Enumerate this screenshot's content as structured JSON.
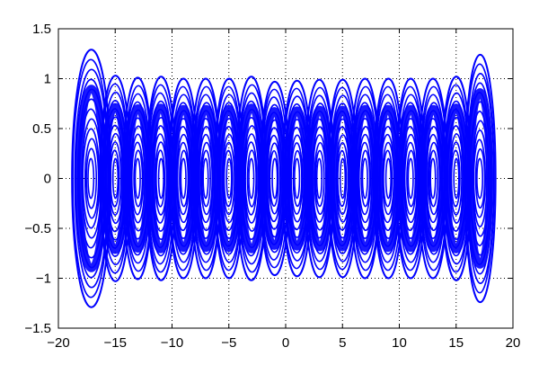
{
  "chart_data": {
    "type": "line",
    "title": "",
    "xlabel": "",
    "ylabel": "",
    "xlim": [
      -20,
      20
    ],
    "ylim": [
      -1.5,
      1.5
    ],
    "xticks": [
      -20,
      -15,
      -10,
      -5,
      0,
      5,
      10,
      15,
      20
    ],
    "yticks": [
      -1.5,
      -1,
      -0.5,
      0,
      0.5,
      1,
      1.5
    ],
    "xtick_labels": [
      "−20",
      "−15",
      "−10",
      "−5",
      "0",
      "5",
      "10",
      "15",
      "20"
    ],
    "ytick_labels": [
      "−1.5",
      "−1",
      "−0.5",
      "0",
      "0.5",
      "1",
      "1.5"
    ],
    "grid": true,
    "grid_style": "dotted",
    "line_color": "#0000ff",
    "series": [
      {
        "shape": "nested loops (phase-portrait attractor)",
        "loops": [
          {
            "cx": -17.1,
            "rx_max": 1.7,
            "ry_max": 1.29,
            "rx_min": 0.25,
            "ry_min": 0.2,
            "rings": 12
          },
          {
            "cx": -15.0,
            "rx_max": 1.35,
            "ry_max": 1.03,
            "rx_min": 0.22,
            "ry_min": 0.2,
            "rings": 11
          },
          {
            "cx": -13.0,
            "rx_max": 1.3,
            "ry_max": 1.01,
            "rx_min": 0.22,
            "ry_min": 0.2,
            "rings": 11
          },
          {
            "cx": -11.0,
            "rx_max": 1.3,
            "ry_max": 1.02,
            "rx_min": 0.22,
            "ry_min": 0.2,
            "rings": 11
          },
          {
            "cx": -9.0,
            "rx_max": 1.3,
            "ry_max": 1.0,
            "rx_min": 0.22,
            "ry_min": 0.2,
            "rings": 11
          },
          {
            "cx": -7.0,
            "rx_max": 1.3,
            "ry_max": 1.0,
            "rx_min": 0.22,
            "ry_min": 0.2,
            "rings": 11
          },
          {
            "cx": -5.0,
            "rx_max": 1.3,
            "ry_max": 1.0,
            "rx_min": 0.22,
            "ry_min": 0.2,
            "rings": 11
          },
          {
            "cx": -3.0,
            "rx_max": 1.35,
            "ry_max": 1.02,
            "rx_min": 0.22,
            "ry_min": 0.2,
            "rings": 11
          },
          {
            "cx": -1.0,
            "rx_max": 1.3,
            "ry_max": 0.97,
            "rx_min": 0.22,
            "ry_min": 0.2,
            "rings": 11
          },
          {
            "cx": 1.0,
            "rx_max": 1.3,
            "ry_max": 0.98,
            "rx_min": 0.22,
            "ry_min": 0.2,
            "rings": 11
          },
          {
            "cx": 3.0,
            "rx_max": 1.3,
            "ry_max": 0.99,
            "rx_min": 0.22,
            "ry_min": 0.2,
            "rings": 11
          },
          {
            "cx": 5.0,
            "rx_max": 1.3,
            "ry_max": 0.99,
            "rx_min": 0.22,
            "ry_min": 0.2,
            "rings": 11
          },
          {
            "cx": 7.0,
            "rx_max": 1.3,
            "ry_max": 1.0,
            "rx_min": 0.22,
            "ry_min": 0.2,
            "rings": 11
          },
          {
            "cx": 9.0,
            "rx_max": 1.3,
            "ry_max": 1.0,
            "rx_min": 0.22,
            "ry_min": 0.2,
            "rings": 11
          },
          {
            "cx": 11.0,
            "rx_max": 1.3,
            "ry_max": 1.0,
            "rx_min": 0.22,
            "ry_min": 0.2,
            "rings": 11
          },
          {
            "cx": 13.0,
            "rx_max": 1.3,
            "ry_max": 1.0,
            "rx_min": 0.22,
            "ry_min": 0.2,
            "rings": 11
          },
          {
            "cx": 15.0,
            "rx_max": 1.3,
            "ry_max": 1.02,
            "rx_min": 0.22,
            "ry_min": 0.2,
            "rings": 11
          },
          {
            "cx": 17.1,
            "rx_max": 1.35,
            "ry_max": 1.24,
            "rx_min": 0.25,
            "ry_min": 0.2,
            "rings": 12
          }
        ]
      }
    ]
  }
}
